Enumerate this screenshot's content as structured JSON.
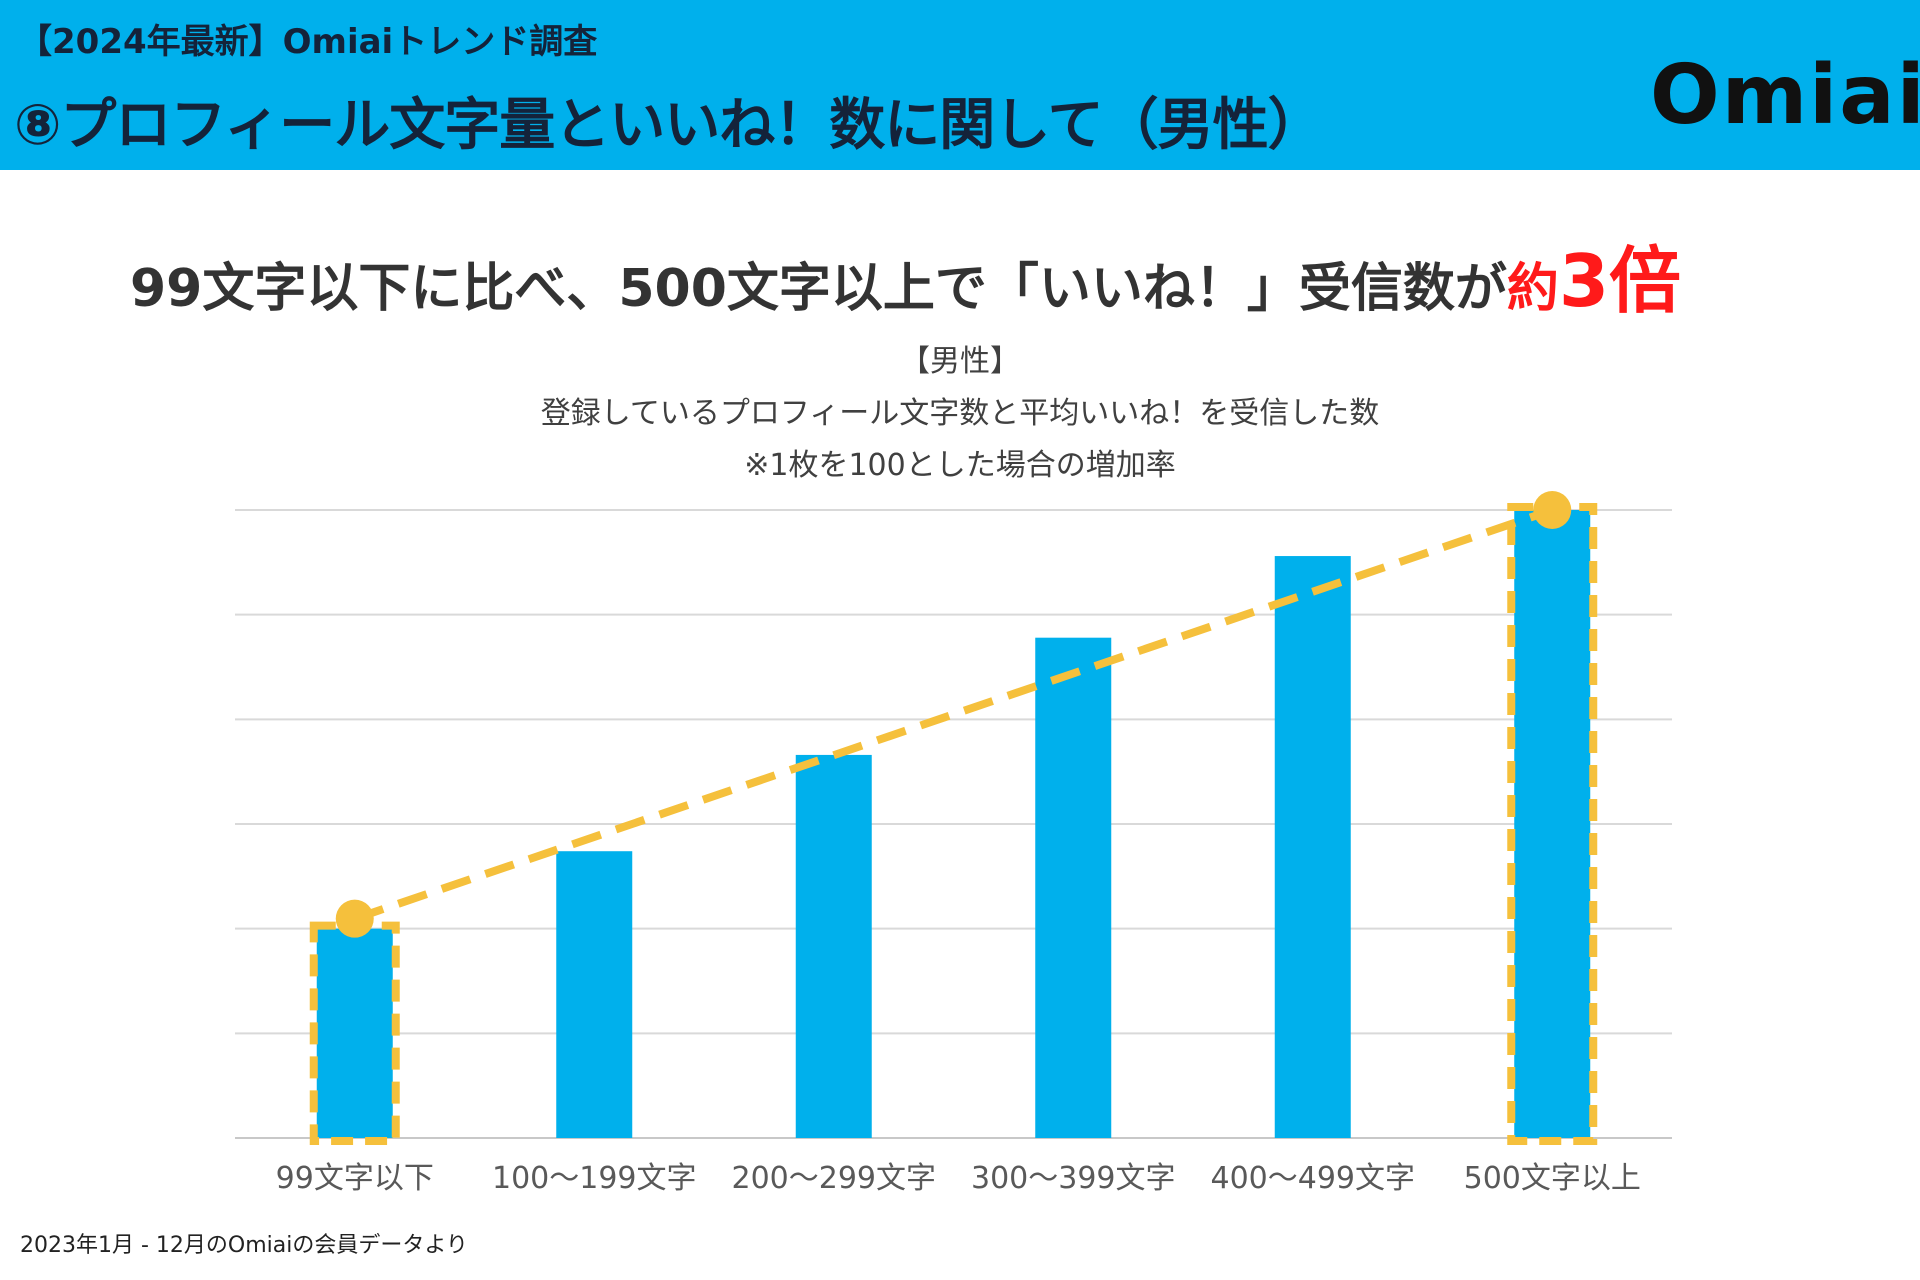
{
  "header": {
    "subtitle": "【2024年最新】Omiaiトレンド調査",
    "title": "⑧プロフィール文字量といいね！数に関して（男性）",
    "logo": "Omiai"
  },
  "headline": {
    "main": "99文字以下に比べ、500文字以上で「いいね！」受信数が",
    "emphasis_prefix": "約",
    "emphasis_value": "3倍"
  },
  "chart_data": {
    "type": "bar",
    "title_lines": [
      "【男性】",
      "登録しているプロフィール文字数と平均いいね！を受信した数",
      "※1枚を100とした場合の増加率"
    ],
    "categories": [
      "99文字以下",
      "100〜199文字",
      "200〜299文字",
      "300〜399文字",
      "400〜499文字",
      "500文字以上"
    ],
    "values": [
      100,
      137,
      183,
      239,
      278,
      300
    ],
    "ylim": [
      0,
      300
    ],
    "grid": true,
    "highlighted": [
      "99文字以下",
      "500文字以上"
    ],
    "trend_line": {
      "from": "99文字以下",
      "to": "500文字以上"
    }
  },
  "colors": {
    "header_bg": "#00b0ec",
    "bar": "#00b0ec",
    "highlight": "#f5c03c",
    "accent_red": "#ff1a1a"
  },
  "footnote": "2023年1月 - 12月のOmiaiの会員データより"
}
